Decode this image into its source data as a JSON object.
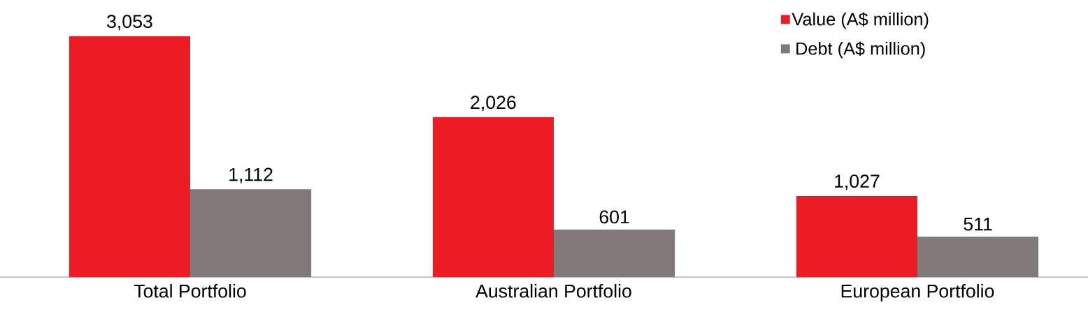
{
  "chart_data": {
    "type": "bar",
    "categories": [
      "Total Portfolio",
      "Australian Portfolio",
      "European Portfolio"
    ],
    "series": [
      {
        "name": "Value (A$ million)",
        "color": "#ed1c24",
        "values": [
          3053,
          2026,
          1027
        ],
        "value_labels": [
          "3,053",
          "2,026",
          "1,027"
        ]
      },
      {
        "name": "Debt (A$ million)",
        "color": "#827a7a",
        "values": [
          1112,
          601,
          511
        ],
        "value_labels": [
          "1,112",
          "601",
          "511"
        ]
      }
    ],
    "legend": "top right"
  }
}
